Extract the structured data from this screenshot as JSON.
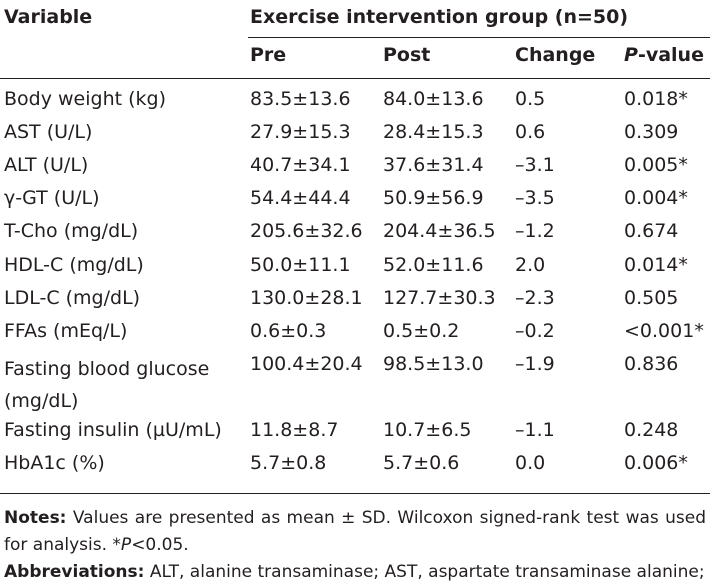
{
  "table": {
    "col_variable": "Variable",
    "group_header": "Exercise intervention group (n=50)",
    "col_pre": "Pre",
    "col_post": "Post",
    "col_change": "Change",
    "col_p_letter": "P",
    "col_p_suffix": "-value",
    "rows": [
      {
        "variable": "Body weight (kg)",
        "pre": "83.5±13.6",
        "post": "84.0±13.6",
        "change": "0.5",
        "p": "0.018*"
      },
      {
        "variable": "AST (U/L)",
        "pre": "27.9±15.3",
        "post": "28.4±15.3",
        "change": "0.6",
        "p": "0.309"
      },
      {
        "variable": "ALT (U/L)",
        "pre": "40.7±34.1",
        "post": "37.6±31.4",
        "change": "–3.1",
        "p": "0.005*"
      },
      {
        "variable": "γ-GT (U/L)",
        "pre": "54.4±44.4",
        "post": "50.9±56.9",
        "change": "–3.5",
        "p": "0.004*"
      },
      {
        "variable": "T-Cho (mg/dL)",
        "pre": "205.6±32.6",
        "post": "204.4±36.5",
        "change": "–1.2",
        "p": "0.674"
      },
      {
        "variable": "HDL-C (mg/dL)",
        "pre": "50.0±11.1",
        "post": "52.0±11.6",
        "change": "2.0",
        "p": "0.014*"
      },
      {
        "variable": "LDL-C (mg/dL)",
        "pre": "130.0±28.1",
        "post": "127.7±30.3",
        "change": "–2.3",
        "p": "0.505"
      },
      {
        "variable": "FFAs (mEq/L)",
        "pre": "0.6±0.3",
        "post": "0.5±0.2",
        "change": "–0.2",
        "p": "<0.001*"
      },
      {
        "variable": "Fasting blood glucose (mg/dL)",
        "pre": "100.4±20.4",
        "post": "98.5±13.0",
        "change": "–1.9",
        "p": "0.836"
      },
      {
        "variable": "Fasting insulin (µU/mL)",
        "pre": "11.8±8.7",
        "post": "10.7±6.5",
        "change": "–1.1",
        "p": "0.248"
      },
      {
        "variable": "HbA1c (%)",
        "pre": "5.7±0.8",
        "post": "5.7±0.6",
        "change": "0.0",
        "p": "0.006*"
      }
    ]
  },
  "notes": {
    "notes_label": "Notes:",
    "notes_text_a": "Values are presented as mean ± SD. Wilcoxon signed-rank test was used for analysis. *",
    "notes_p": "P",
    "notes_text_b": "<0.05.",
    "abbrev_label": "Abbreviations:",
    "abbrev_text": "ALT, alanine transaminase; AST, aspartate transaminase alanine;"
  }
}
